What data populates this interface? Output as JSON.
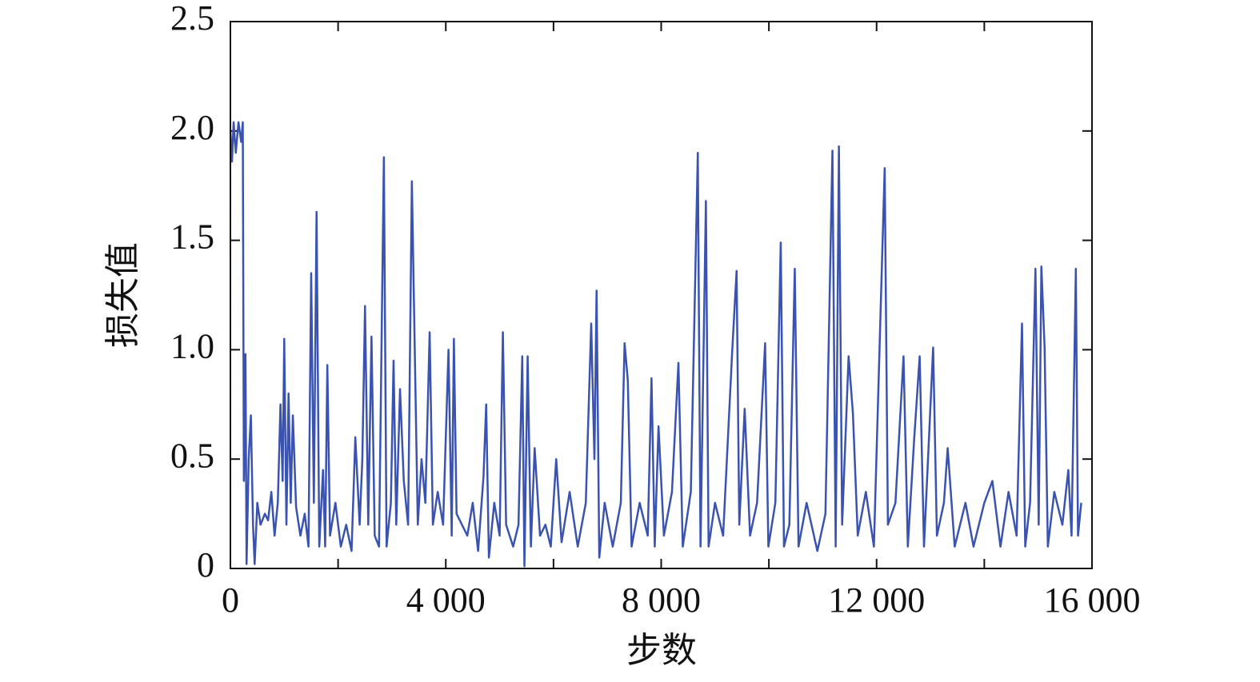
{
  "chart_data": {
    "type": "line",
    "xlabel": "步数",
    "ylabel": "损失值",
    "x": [
      0,
      30,
      60,
      100,
      150,
      200,
      230,
      250,
      280,
      300,
      340,
      380,
      420,
      450,
      500,
      560,
      640,
      700,
      760,
      820,
      880,
      930,
      970,
      1000,
      1040,
      1080,
      1120,
      1160,
      1220,
      1300,
      1380,
      1450,
      1500,
      1550,
      1600,
      1650,
      1720,
      1760,
      1800,
      1850,
      1950,
      2050,
      2150,
      2250,
      2320,
      2400,
      2450,
      2500,
      2560,
      2620,
      2680,
      2760,
      2850,
      2900,
      2980,
      3030,
      3080,
      3150,
      3220,
      3300,
      3370,
      3420,
      3480,
      3550,
      3620,
      3700,
      3760,
      3850,
      3950,
      4050,
      4110,
      4150,
      4200,
      4300,
      4400,
      4500,
      4600,
      4700,
      4750,
      4800,
      4900,
      5000,
      5060,
      5120,
      5250,
      5350,
      5420,
      5460,
      5520,
      5580,
      5650,
      5750,
      5850,
      5950,
      6050,
      6150,
      6300,
      6450,
      6600,
      6700,
      6760,
      6800,
      6850,
      6950,
      7100,
      7250,
      7320,
      7380,
      7450,
      7600,
      7750,
      7820,
      7880,
      7950,
      8050,
      8200,
      8320,
      8400,
      8550,
      8680,
      8730,
      8830,
      8880,
      9000,
      9150,
      9320,
      9400,
      9450,
      9550,
      9650,
      9780,
      9930,
      9990,
      10120,
      10220,
      10280,
      10380,
      10480,
      10550,
      10700,
      10900,
      11050,
      11180,
      11240,
      11300,
      11360,
      11480,
      11560,
      11650,
      11800,
      11950,
      12150,
      12210,
      12350,
      12500,
      12580,
      12700,
      12800,
      12880,
      13050,
      13120,
      13250,
      13320,
      13450,
      13650,
      13800,
      14000,
      14150,
      14300,
      14450,
      14600,
      14700,
      14760,
      14850,
      14950,
      15010,
      15060,
      15120,
      15180,
      15300,
      15450,
      15560,
      15620,
      15700,
      15740,
      15800
    ],
    "series": [
      {
        "name": "loss",
        "color": "#3a53b0",
        "values": [
          2.0,
          1.86,
          2.04,
          1.9,
          2.04,
          1.95,
          2.04,
          0.4,
          0.98,
          0.02,
          0.5,
          0.7,
          0.2,
          0.02,
          0.3,
          0.2,
          0.25,
          0.22,
          0.35,
          0.15,
          0.3,
          0.75,
          0.4,
          1.05,
          0.2,
          0.8,
          0.3,
          0.7,
          0.28,
          0.15,
          0.25,
          0.1,
          1.35,
          0.3,
          1.63,
          0.1,
          0.45,
          0.1,
          0.93,
          0.15,
          0.3,
          0.1,
          0.2,
          0.08,
          0.6,
          0.2,
          0.5,
          1.2,
          0.2,
          1.06,
          0.15,
          0.1,
          1.88,
          0.1,
          0.3,
          0.95,
          0.2,
          0.82,
          0.4,
          0.2,
          1.77,
          1.05,
          0.2,
          0.5,
          0.3,
          1.08,
          0.2,
          0.35,
          0.2,
          1.0,
          0.15,
          1.05,
          0.25,
          0.2,
          0.15,
          0.3,
          0.08,
          0.42,
          0.75,
          0.05,
          0.3,
          0.15,
          1.08,
          0.2,
          0.1,
          0.2,
          0.97,
          0.01,
          0.97,
          0.1,
          0.55,
          0.15,
          0.2,
          0.1,
          0.5,
          0.12,
          0.35,
          0.1,
          0.3,
          1.12,
          0.5,
          1.27,
          0.05,
          0.3,
          0.1,
          0.3,
          1.03,
          0.86,
          0.1,
          0.3,
          0.15,
          0.87,
          0.1,
          0.65,
          0.15,
          0.35,
          0.94,
          0.1,
          0.35,
          1.9,
          0.1,
          1.68,
          0.1,
          0.3,
          0.15,
          1.0,
          1.36,
          0.2,
          0.73,
          0.15,
          0.3,
          1.03,
          0.1,
          0.3,
          1.49,
          0.1,
          0.2,
          1.37,
          0.1,
          0.3,
          0.08,
          0.25,
          1.91,
          0.1,
          1.93,
          0.2,
          0.97,
          0.71,
          0.15,
          0.35,
          0.1,
          1.83,
          0.2,
          0.3,
          0.97,
          0.1,
          0.6,
          0.97,
          0.1,
          1.01,
          0.15,
          0.3,
          0.55,
          0.1,
          0.3,
          0.1,
          0.3,
          0.4,
          0.1,
          0.35,
          0.15,
          1.12,
          0.1,
          0.3,
          1.37,
          0.2,
          1.38,
          1.01,
          0.1,
          0.35,
          0.2,
          0.45,
          0.15,
          1.37,
          0.15,
          0.3
        ]
      }
    ],
    "xlim": [
      0,
      16000
    ],
    "xticks": [
      0,
      {
        "value": 4000,
        "label": "4 000"
      },
      {
        "value": 8000,
        "label": "8 000"
      },
      {
        "value": 12000,
        "label": "12 000"
      },
      {
        "value": 16000,
        "label": "16 000"
      }
    ],
    "xminorticks": [
      2000,
      6000,
      10000,
      14000
    ],
    "ylim": [
      0,
      2.5
    ],
    "yticks": [
      0,
      0.5,
      {
        "value": 1,
        "label": "1.0"
      },
      1.5,
      {
        "value": 2,
        "label": "2.0"
      },
      2.5
    ],
    "grid": false
  }
}
